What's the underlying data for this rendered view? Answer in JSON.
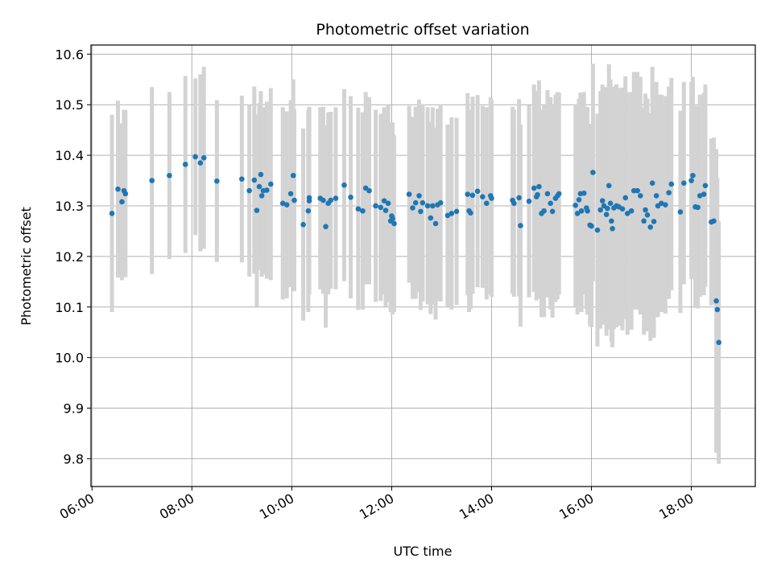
{
  "chart_data": {
    "type": "scatter",
    "title": "Photometric offset variation",
    "xlabel": "UTC time",
    "ylabel": "Photometric offset",
    "x_unit": "hours (UTC)",
    "xlim": [
      5.98,
      19.28
    ],
    "ylim": [
      9.745,
      10.618
    ],
    "x_ticks": [
      {
        "value": 6,
        "label": "06:00"
      },
      {
        "value": 8,
        "label": "08:00"
      },
      {
        "value": 10,
        "label": "10:00"
      },
      {
        "value": 12,
        "label": "12:00"
      },
      {
        "value": 14,
        "label": "14:00"
      },
      {
        "value": 16,
        "label": "16:00"
      },
      {
        "value": 18,
        "label": "18:00"
      }
    ],
    "y_ticks": [
      {
        "value": 9.8,
        "label": "9.8"
      },
      {
        "value": 9.9,
        "label": "9.9"
      },
      {
        "value": 10.0,
        "label": "10.0"
      },
      {
        "value": 10.1,
        "label": "10.1"
      },
      {
        "value": 10.2,
        "label": "10.2"
      },
      {
        "value": 10.3,
        "label": "10.3"
      },
      {
        "value": 10.4,
        "label": "10.4"
      },
      {
        "value": 10.5,
        "label": "10.5"
      },
      {
        "value": 10.6,
        "label": "10.6"
      }
    ],
    "grid": true,
    "colors": {
      "point": "#1f77b4",
      "errorbar": "#d3d3d3",
      "grid": "#b0b0b0"
    },
    "series": [
      {
        "points": [
          [
            6.4,
            10.285,
            0.195
          ],
          [
            6.52,
            10.333,
            0.175
          ],
          [
            6.6,
            10.308,
            0.155
          ],
          [
            6.64,
            10.33,
            0.16
          ],
          [
            6.67,
            10.324,
            0.165
          ],
          [
            7.2,
            10.35,
            0.185
          ],
          [
            7.55,
            10.36,
            0.165
          ],
          [
            7.87,
            10.382,
            0.175
          ],
          [
            8.07,
            10.397,
            0.155
          ],
          [
            8.17,
            10.385,
            0.175
          ],
          [
            8.24,
            10.395,
            0.18
          ],
          [
            8.5,
            10.349,
            0.16
          ],
          [
            9.0,
            10.353,
            0.165
          ],
          [
            9.15,
            10.33,
            0.17
          ],
          [
            9.25,
            10.351,
            0.185
          ],
          [
            9.3,
            10.291,
            0.19
          ],
          [
            9.35,
            10.338,
            0.165
          ],
          [
            9.38,
            10.362,
            0.165
          ],
          [
            9.4,
            10.32,
            0.16
          ],
          [
            9.43,
            10.33,
            0.165
          ],
          [
            9.5,
            10.331,
            0.175
          ],
          [
            9.58,
            10.343,
            0.19
          ],
          [
            9.82,
            10.305,
            0.19
          ],
          [
            9.9,
            10.302,
            0.185
          ],
          [
            9.98,
            10.324,
            0.185
          ],
          [
            10.03,
            10.36,
            0.19
          ],
          [
            10.05,
            10.311,
            0.18
          ],
          [
            10.23,
            10.263,
            0.19
          ],
          [
            10.33,
            10.29,
            0.2
          ],
          [
            10.35,
            10.316,
            0.18
          ],
          [
            10.35,
            10.31,
            0.185
          ],
          [
            10.57,
            10.315,
            0.18
          ],
          [
            10.63,
            10.311,
            0.185
          ],
          [
            10.68,
            10.259,
            0.2
          ],
          [
            10.73,
            10.305,
            0.18
          ],
          [
            10.78,
            10.311,
            0.175
          ],
          [
            10.88,
            10.315,
            0.18
          ],
          [
            11.05,
            10.341,
            0.19
          ],
          [
            11.18,
            10.317,
            0.2
          ],
          [
            11.33,
            10.294,
            0.2
          ],
          [
            11.42,
            10.29,
            0.195
          ],
          [
            11.48,
            10.335,
            0.19
          ],
          [
            11.55,
            10.33,
            0.185
          ],
          [
            11.68,
            10.3,
            0.19
          ],
          [
            11.78,
            10.297,
            0.185
          ],
          [
            11.85,
            10.31,
            0.185
          ],
          [
            11.88,
            10.291,
            0.19
          ],
          [
            11.93,
            10.305,
            0.195
          ],
          [
            11.98,
            10.27,
            0.18
          ],
          [
            12.0,
            10.28,
            0.185
          ],
          [
            12.02,
            10.275,
            0.19
          ],
          [
            12.05,
            10.265,
            0.175
          ],
          [
            12.35,
            10.323,
            0.175
          ],
          [
            12.42,
            10.296,
            0.18
          ],
          [
            12.48,
            10.306,
            0.19
          ],
          [
            12.55,
            10.32,
            0.19
          ],
          [
            12.58,
            10.289,
            0.195
          ],
          [
            12.62,
            10.306,
            0.195
          ],
          [
            12.72,
            10.3,
            0.195
          ],
          [
            12.78,
            10.276,
            0.19
          ],
          [
            12.82,
            10.3,
            0.195
          ],
          [
            12.88,
            10.265,
            0.19
          ],
          [
            12.92,
            10.302,
            0.19
          ],
          [
            12.98,
            10.306,
            0.195
          ],
          [
            13.12,
            10.281,
            0.18
          ],
          [
            13.2,
            10.285,
            0.19
          ],
          [
            13.3,
            10.289,
            0.185
          ],
          [
            13.52,
            10.323,
            0.2
          ],
          [
            13.55,
            10.29,
            0.2
          ],
          [
            13.58,
            10.286,
            0.19
          ],
          [
            13.62,
            10.321,
            0.195
          ],
          [
            13.72,
            10.329,
            0.19
          ],
          [
            13.82,
            10.318,
            0.18
          ],
          [
            13.9,
            10.305,
            0.19
          ],
          [
            13.98,
            10.32,
            0.195
          ],
          [
            14.0,
            10.315,
            0.195
          ],
          [
            14.42,
            10.311,
            0.185
          ],
          [
            14.45,
            10.305,
            0.185
          ],
          [
            14.55,
            10.316,
            0.195
          ],
          [
            14.58,
            10.261,
            0.2
          ],
          [
            14.75,
            10.309,
            0.19
          ],
          [
            14.85,
            10.335,
            0.205
          ],
          [
            14.9,
            10.318,
            0.205
          ],
          [
            14.92,
            10.322,
            0.205
          ],
          [
            14.95,
            10.338,
            0.21
          ],
          [
            15.0,
            10.285,
            0.205
          ],
          [
            15.05,
            10.29,
            0.21
          ],
          [
            15.12,
            10.324,
            0.205
          ],
          [
            15.18,
            10.305,
            0.21
          ],
          [
            15.22,
            10.289,
            0.21
          ],
          [
            15.28,
            10.315,
            0.205
          ],
          [
            15.32,
            10.32,
            0.205
          ],
          [
            15.35,
            10.324,
            0.2
          ],
          [
            15.68,
            10.301,
            0.2
          ],
          [
            15.72,
            10.285,
            0.2
          ],
          [
            15.75,
            10.312,
            0.2
          ],
          [
            15.78,
            10.324,
            0.2
          ],
          [
            15.8,
            10.29,
            0.2
          ],
          [
            15.85,
            10.325,
            0.2
          ],
          [
            15.9,
            10.296,
            0.2
          ],
          [
            15.92,
            10.29,
            0.205
          ],
          [
            15.97,
            10.262,
            0.2
          ],
          [
            16.0,
            10.26,
            0.2
          ],
          [
            16.03,
            10.366,
            0.215
          ],
          [
            16.12,
            10.252,
            0.23
          ],
          [
            16.18,
            10.292,
            0.235
          ],
          [
            16.22,
            10.31,
            0.23
          ],
          [
            16.25,
            10.3,
            0.235
          ],
          [
            16.3,
            10.283,
            0.24
          ],
          [
            16.32,
            10.295,
            0.24
          ],
          [
            16.35,
            10.34,
            0.24
          ],
          [
            16.38,
            10.305,
            0.245
          ],
          [
            16.4,
            10.27,
            0.24
          ],
          [
            16.42,
            10.255,
            0.235
          ],
          [
            16.45,
            10.296,
            0.24
          ],
          [
            16.5,
            10.3,
            0.24
          ],
          [
            16.55,
            10.298,
            0.235
          ],
          [
            16.62,
            10.294,
            0.24
          ],
          [
            16.68,
            10.316,
            0.24
          ],
          [
            16.72,
            10.285,
            0.24
          ],
          [
            16.8,
            10.29,
            0.235
          ],
          [
            16.85,
            10.33,
            0.235
          ],
          [
            16.92,
            10.33,
            0.235
          ],
          [
            16.98,
            10.32,
            0.235
          ],
          [
            17.05,
            10.27,
            0.225
          ],
          [
            17.08,
            10.292,
            0.23
          ],
          [
            17.12,
            10.282,
            0.23
          ],
          [
            17.18,
            10.258,
            0.225
          ],
          [
            17.22,
            10.345,
            0.23
          ],
          [
            17.25,
            10.269,
            0.23
          ],
          [
            17.3,
            10.32,
            0.225
          ],
          [
            17.33,
            10.3,
            0.22
          ],
          [
            17.4,
            10.305,
            0.215
          ],
          [
            17.48,
            10.302,
            0.215
          ],
          [
            17.55,
            10.326,
            0.21
          ],
          [
            17.6,
            10.343,
            0.21
          ],
          [
            17.78,
            10.288,
            0.2
          ],
          [
            17.85,
            10.345,
            0.2
          ],
          [
            18.0,
            10.35,
            0.195
          ],
          [
            18.03,
            10.36,
            0.195
          ],
          [
            18.08,
            10.298,
            0.2
          ],
          [
            18.13,
            10.297,
            0.2
          ],
          [
            18.17,
            10.32,
            0.2
          ],
          [
            18.25,
            10.323,
            0.2
          ],
          [
            18.28,
            10.34,
            0.2
          ],
          [
            18.4,
            10.268,
            0.165
          ],
          [
            18.45,
            10.27,
            0.165
          ],
          [
            18.5,
            10.112,
            0.3
          ],
          [
            18.52,
            10.095,
            0.26
          ],
          [
            18.55,
            10.03,
            0.24
          ]
        ]
      }
    ]
  }
}
